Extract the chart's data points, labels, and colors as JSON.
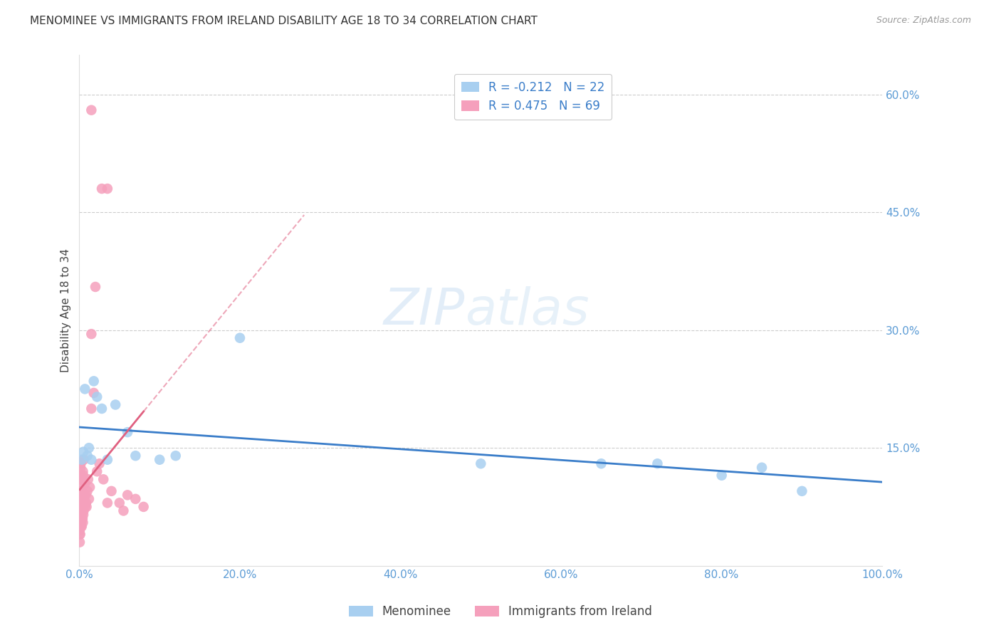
{
  "title": "MENOMINEE VS IMMIGRANTS FROM IRELAND DISABILITY AGE 18 TO 34 CORRELATION CHART",
  "source": "Source: ZipAtlas.com",
  "ylabel": "Disability Age 18 to 34",
  "xlim": [
    0,
    100
  ],
  "ylim": [
    0,
    65
  ],
  "watermark_zip": "ZIP",
  "watermark_atlas": "atlas",
  "legend_blue_label": "Menominee",
  "legend_pink_label": "Immigrants from Ireland",
  "R_blue": -0.212,
  "N_blue": 22,
  "R_pink": 0.475,
  "N_pink": 69,
  "blue_scatter_color": "#A8CFF0",
  "pink_scatter_color": "#F5A0BC",
  "blue_line_color": "#3A7DC9",
  "pink_line_color": "#E06080",
  "blue_x": [
    0.3,
    0.5,
    0.7,
    1.0,
    1.2,
    1.5,
    1.8,
    2.2,
    2.8,
    3.5,
    4.5,
    6.0,
    7.0,
    10.0,
    12.0,
    20.0,
    50.0,
    65.0,
    72.0,
    80.0,
    85.0,
    90.0
  ],
  "blue_y": [
    13.5,
    14.5,
    22.5,
    14.0,
    15.0,
    13.5,
    23.5,
    21.5,
    20.0,
    13.5,
    20.5,
    17.0,
    14.0,
    13.5,
    14.0,
    29.0,
    13.0,
    13.0,
    13.0,
    11.5,
    12.5,
    9.5
  ],
  "pink_x": [
    0.05,
    0.05,
    0.05,
    0.07,
    0.07,
    0.08,
    0.08,
    0.09,
    0.1,
    0.1,
    0.1,
    0.12,
    0.12,
    0.13,
    0.14,
    0.15,
    0.15,
    0.15,
    0.17,
    0.18,
    0.18,
    0.2,
    0.2,
    0.2,
    0.22,
    0.25,
    0.25,
    0.28,
    0.3,
    0.3,
    0.32,
    0.35,
    0.35,
    0.38,
    0.4,
    0.4,
    0.42,
    0.45,
    0.45,
    0.5,
    0.5,
    0.55,
    0.55,
    0.6,
    0.65,
    0.7,
    0.75,
    0.8,
    0.85,
    0.9,
    1.0,
    1.1,
    1.2,
    1.3,
    1.5,
    1.5,
    2.0,
    2.2,
    2.5,
    3.0,
    3.5,
    4.0,
    5.0,
    5.5,
    6.0,
    7.0,
    8.0,
    1.8,
    2.8
  ],
  "pink_y": [
    3.0,
    4.5,
    6.0,
    4.0,
    7.0,
    5.5,
    8.5,
    6.5,
    4.0,
    6.5,
    9.5,
    5.0,
    8.0,
    11.0,
    7.0,
    5.5,
    9.0,
    12.5,
    6.5,
    9.5,
    13.0,
    5.0,
    8.0,
    11.5,
    7.0,
    5.5,
    9.5,
    6.5,
    5.0,
    9.5,
    7.5,
    6.0,
    11.0,
    8.5,
    6.0,
    10.5,
    7.5,
    5.5,
    12.0,
    6.5,
    11.5,
    7.0,
    13.5,
    9.0,
    8.0,
    10.5,
    7.5,
    9.0,
    8.0,
    7.5,
    9.5,
    11.0,
    8.5,
    10.0,
    20.0,
    29.5,
    35.5,
    12.0,
    13.0,
    11.0,
    8.0,
    9.5,
    8.0,
    7.0,
    9.0,
    8.5,
    7.5,
    22.0,
    48.0
  ],
  "pink_outlier1_x": 1.5,
  "pink_outlier1_y": 58.0,
  "pink_outlier2_x": 3.5,
  "pink_outlier2_y": 48.0
}
